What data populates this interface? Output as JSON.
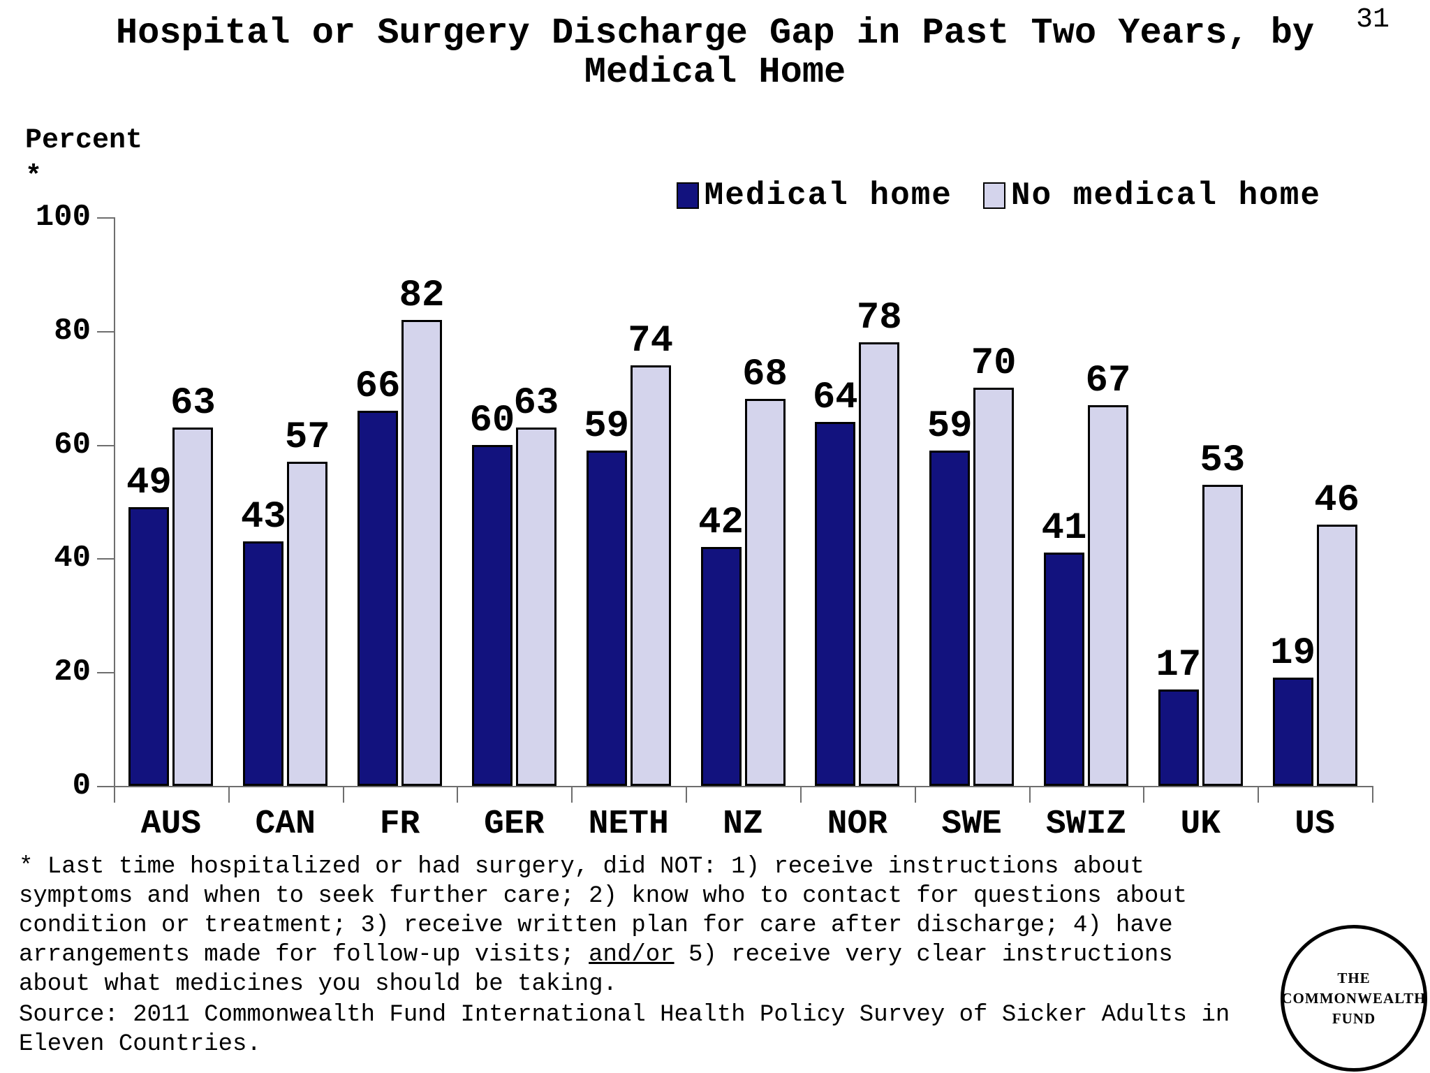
{
  "page_number": "31",
  "title": {
    "lines": [
      "Hospital or Surgery Discharge Gap in Past Two Years, by",
      "Medical Home"
    ]
  },
  "axis_note": {
    "label": "Percent",
    "asterisk": "*"
  },
  "legend": {
    "items": [
      {
        "label": "Medical home",
        "color": "#12127E"
      },
      {
        "label": "No medical home",
        "color": "#D4D4EC"
      }
    ]
  },
  "chart_data": {
    "type": "bar",
    "categories": [
      "AUS",
      "CAN",
      "FR",
      "GER",
      "NETH",
      "NZ",
      "NOR",
      "SWE",
      "SWIZ",
      "UK",
      "US"
    ],
    "series": [
      {
        "name": "Medical home",
        "color": "#12127E",
        "values": [
          49,
          43,
          66,
          60,
          59,
          42,
          64,
          59,
          41,
          17,
          19
        ]
      },
      {
        "name": "No medical home",
        "color": "#D4D4EC",
        "values": [
          63,
          57,
          82,
          63,
          74,
          68,
          78,
          70,
          67,
          53,
          46
        ]
      }
    ],
    "title": "Hospital or Surgery Discharge Gap in Past Two Years, by Medical Home",
    "xlabel": "",
    "ylabel": "Percent*",
    "ylim": [
      0,
      100
    ],
    "yticks": [
      0,
      20,
      40,
      60,
      80,
      100
    ],
    "grid": false,
    "legend_position": "top-right",
    "value_labels": true
  },
  "footnote": {
    "lines": [
      [
        {
          "t": "* Last time hospitalized or had surgery, did NOT: 1) receive instructions about"
        }
      ],
      [
        {
          "t": "symptoms and when to seek further care; 2) know who to contact for questions about"
        }
      ],
      [
        {
          "t": "condition or treatment; 3) receive written plan for care after discharge; 4) have"
        }
      ],
      [
        {
          "t": "arrangements made for follow-up visits; "
        },
        {
          "t": "and/or",
          "u": true
        },
        {
          "t": " 5) receive very clear instructions"
        }
      ],
      [
        {
          "t": "about what medicines you should be taking."
        }
      ]
    ]
  },
  "source": {
    "lines": [
      "Source: 2011 Commonwealth Fund International Health Policy Survey of Sicker Adults in",
      "Eleven Countries."
    ]
  },
  "logo": {
    "lines": [
      "THE",
      "COMMONWEALTH",
      "FUND"
    ]
  }
}
